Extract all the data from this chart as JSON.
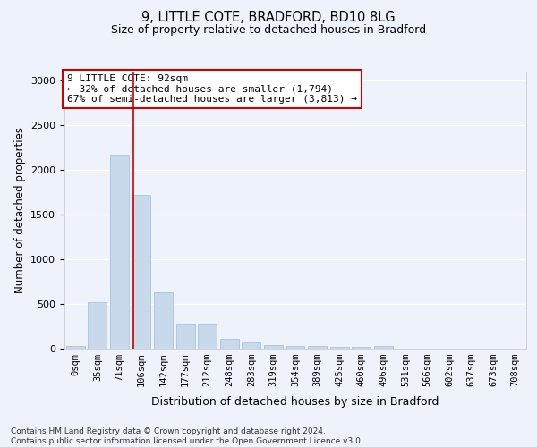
{
  "title_line1": "9, LITTLE COTE, BRADFORD, BD10 8LG",
  "title_line2": "Size of property relative to detached houses in Bradford",
  "xlabel": "Distribution of detached houses by size in Bradford",
  "ylabel": "Number of detached properties",
  "footnote": "Contains HM Land Registry data © Crown copyright and database right 2024.\nContains public sector information licensed under the Open Government Licence v3.0.",
  "bar_labels": [
    "0sqm",
    "35sqm",
    "71sqm",
    "106sqm",
    "142sqm",
    "177sqm",
    "212sqm",
    "248sqm",
    "283sqm",
    "319sqm",
    "354sqm",
    "389sqm",
    "425sqm",
    "460sqm",
    "496sqm",
    "531sqm",
    "566sqm",
    "602sqm",
    "637sqm",
    "673sqm",
    "708sqm"
  ],
  "bar_values": [
    30,
    525,
    2175,
    1720,
    630,
    285,
    285,
    115,
    70,
    45,
    30,
    30,
    25,
    25,
    30,
    5,
    5,
    5,
    5,
    5,
    5
  ],
  "bar_color": "#c9d9ec",
  "bar_edge_color": "#a8c4dc",
  "property_line_x": 2.62,
  "annotation_text": "9 LITTLE COTE: 92sqm\n← 32% of detached houses are smaller (1,794)\n67% of semi-detached houses are larger (3,813) →",
  "annotation_box_color": "#ffffff",
  "annotation_box_edge_color": "#cc0000",
  "vline_color": "#cc0000",
  "ylim": [
    0,
    3100
  ],
  "background_color": "#eef2fa",
  "grid_color": "#ffffff",
  "title1_fontsize": 10.5,
  "title2_fontsize": 9,
  "ylabel_fontsize": 8.5,
  "xlabel_fontsize": 9,
  "tick_fontsize": 7.5,
  "annot_fontsize": 8
}
